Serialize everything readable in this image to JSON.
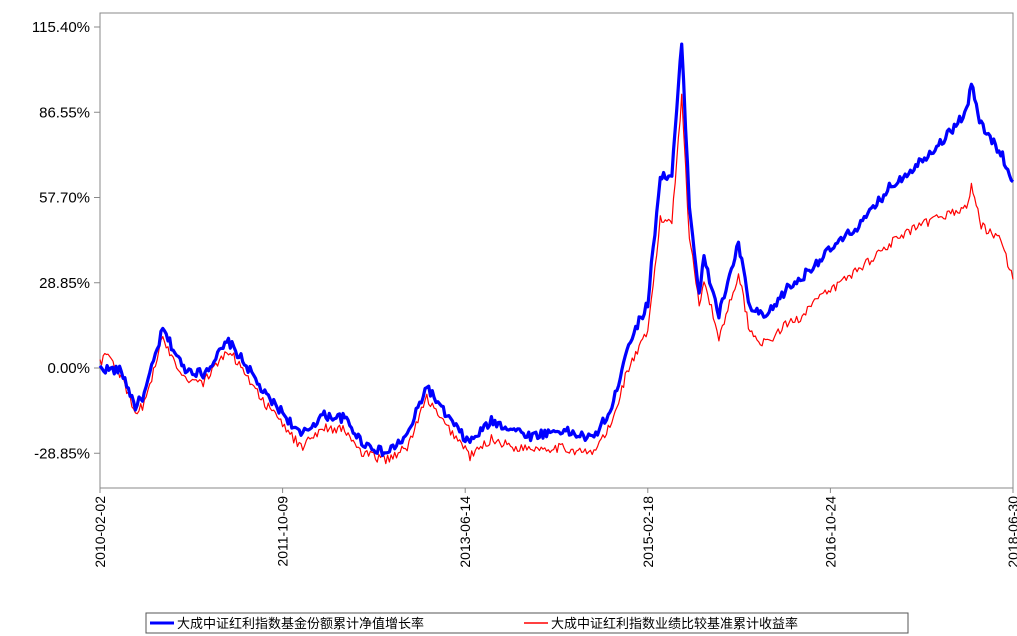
{
  "chart_data": {
    "type": "line",
    "title": "",
    "xlabel": "",
    "ylabel": "",
    "grid": false,
    "legend_position": "bottom",
    "ylim": [
      -38,
      115.4
    ],
    "xlim": [
      "2010-02-02",
      "2018-06-30"
    ],
    "y_ticks": [
      {
        "value": 115.4,
        "label": "115.40%"
      },
      {
        "value": 86.55,
        "label": "86.55%"
      },
      {
        "value": 57.7,
        "label": "57.70%"
      },
      {
        "value": 28.85,
        "label": "28.85%"
      },
      {
        "value": 0.0,
        "label": "0.00%"
      },
      {
        "value": -28.85,
        "label": "-28.85%"
      }
    ],
    "x_ticks": [
      "2010-02-02",
      "2011-10-09",
      "2013-06-14",
      "2015-02-18",
      "2016-10-24",
      "2018-06-30"
    ],
    "series": [
      {
        "name": "大成中证红利指数基金份额累计净值增长率",
        "color": "#0000ff",
        "x": [
          "2010-02-02",
          "2010-04-15",
          "2010-06-01",
          "2010-07-01",
          "2010-09-01",
          "2010-11-10",
          "2011-01-15",
          "2011-04-10",
          "2011-06-15",
          "2011-08-10",
          "2011-10-09",
          "2011-12-10",
          "2012-02-20",
          "2012-05-05",
          "2012-07-01",
          "2012-09-20",
          "2012-12-01",
          "2013-02-05",
          "2013-03-20",
          "2013-06-14",
          "2013-06-30",
          "2013-09-10",
          "2013-12-01",
          "2014-01-20",
          "2014-05-01",
          "2014-08-15",
          "2014-10-20",
          "2014-12-10",
          "2015-02-18",
          "2015-04-01",
          "2015-05-10",
          "2015-06-12",
          "2015-07-08",
          "2015-08-10",
          "2015-08-26",
          "2015-10-15",
          "2015-12-20",
          "2016-01-28",
          "2016-03-20",
          "2016-06-01",
          "2016-07-15",
          "2016-08-20",
          "2016-10-24",
          "2016-12-10",
          "2017-02-15",
          "2017-05-10",
          "2017-08-01",
          "2017-11-15",
          "2018-01-25",
          "2018-02-10",
          "2018-03-15",
          "2018-04-20",
          "2018-05-20",
          "2018-06-30"
        ],
        "values": [
          0,
          -1,
          -13,
          -9,
          13,
          0,
          -2,
          9,
          0,
          -9,
          -15,
          -23,
          -16,
          -17,
          -25,
          -29,
          -23,
          -6,
          -13,
          -24,
          -25,
          -18,
          -21,
          -23,
          -21,
          -24,
          -14,
          7,
          22,
          65,
          65,
          110,
          55,
          25,
          37,
          18,
          42,
          20,
          17,
          27,
          30,
          34,
          40,
          44,
          50,
          61,
          68,
          78,
          87,
          96,
          82,
          77,
          73,
          63
        ]
      },
      {
        "name": "大成中证红利指数业绩比较基准累计收益率",
        "color": "#ff0000",
        "x": [
          "2010-02-02",
          "2010-03-01",
          "2010-04-15",
          "2010-06-01",
          "2010-07-01",
          "2010-09-01",
          "2010-11-10",
          "2011-01-15",
          "2011-04-10",
          "2011-06-15",
          "2011-08-10",
          "2011-10-09",
          "2011-12-10",
          "2012-02-20",
          "2012-05-05",
          "2012-07-01",
          "2012-09-20",
          "2012-12-01",
          "2013-02-05",
          "2013-03-20",
          "2013-06-14",
          "2013-06-30",
          "2013-09-10",
          "2013-12-01",
          "2014-01-20",
          "2014-05-01",
          "2014-08-15",
          "2014-10-20",
          "2014-12-10",
          "2015-02-18",
          "2015-04-01",
          "2015-05-10",
          "2015-06-12",
          "2015-07-08",
          "2015-08-10",
          "2015-08-26",
          "2015-10-15",
          "2015-12-20",
          "2016-01-28",
          "2016-03-20",
          "2016-06-01",
          "2016-07-15",
          "2016-08-20",
          "2016-10-24",
          "2016-12-10",
          "2017-02-15",
          "2017-05-10",
          "2017-08-01",
          "2017-11-15",
          "2018-01-25",
          "2018-02-10",
          "2018-03-15",
          "2018-04-20",
          "2018-05-20",
          "2018-06-30"
        ],
        "values": [
          2,
          5,
          -3,
          -16,
          -12,
          10,
          -3,
          -5,
          6,
          -3,
          -12,
          -19,
          -27,
          -20,
          -21,
          -29,
          -31,
          -27,
          -10,
          -17,
          -27,
          -30,
          -24,
          -27,
          -27,
          -27,
          -29,
          -19,
          -1,
          12,
          50,
          50,
          92,
          44,
          22,
          30,
          10,
          32,
          12,
          8,
          15,
          17,
          22,
          26,
          30,
          35,
          42,
          47,
          52,
          54,
          62,
          48,
          46,
          43,
          30
        ]
      }
    ]
  }
}
